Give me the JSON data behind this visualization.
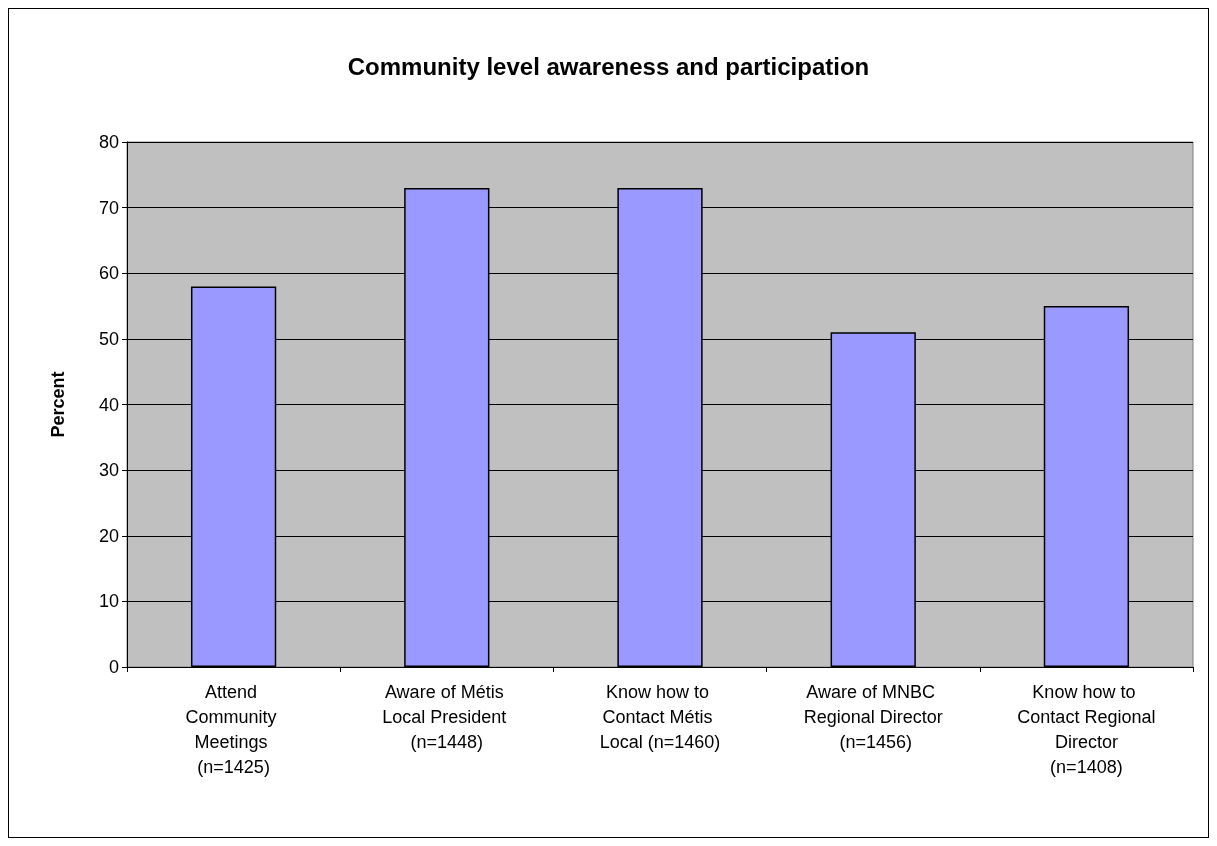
{
  "chart_data": {
    "type": "bar",
    "title": "Community level awareness and participation",
    "ylabel": "Percent",
    "categories": [
      "Attend Community Meetings (n=1425)",
      "Aware of Métis Local President (n=1448)",
      "Know how to Contact Métis Local (n=1460)",
      "Aware of MNBC Regional Director (n=1456)",
      "Know how to Contact Regional Director (n=1408)"
    ],
    "values": [
      58,
      73,
      73,
      51,
      55
    ],
    "color": "#9999ff",
    "ylim": [
      0,
      80
    ],
    "yticks": [
      0,
      10,
      20,
      30,
      40,
      50,
      60,
      70,
      80
    ],
    "grid": "y"
  }
}
